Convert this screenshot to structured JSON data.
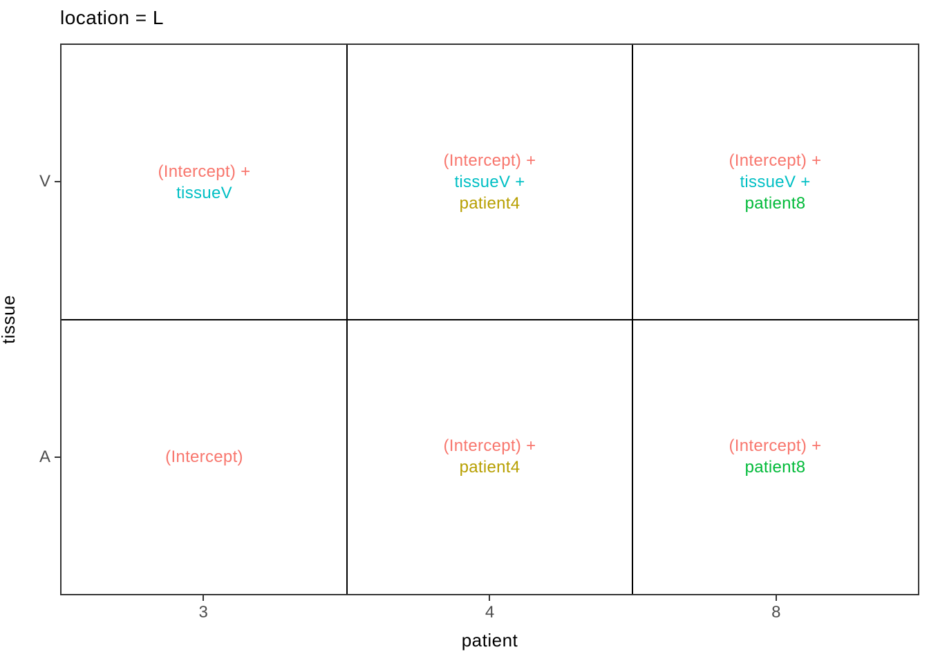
{
  "figure": {
    "background": "#FFFFFF"
  },
  "chart_data": {
    "type": "table",
    "title": "location = L",
    "xlabel": "patient",
    "ylabel": "tissue",
    "x_categories": [
      "3",
      "4",
      "8"
    ],
    "y_categories": [
      "V",
      "A"
    ],
    "legend": false,
    "grid": false,
    "panel_border_color": "#333333",
    "divider_color": "#000000",
    "tick_color": "#333333",
    "tick_label_color": "#4D4D4D",
    "title_color": "#000000",
    "axis_title_color": "#000000",
    "term_colors": {
      "(Intercept)": "#F8766D",
      "tissueV": "#00BFC4",
      "patient4": "#B79F00",
      "patient8": "#00BA38"
    },
    "cells": [
      {
        "row": "V",
        "col": "3",
        "lines": [
          {
            "text": "(Intercept) +",
            "color": "#F8766D"
          },
          {
            "text": "tissueV",
            "color": "#00BFC4"
          }
        ]
      },
      {
        "row": "V",
        "col": "4",
        "lines": [
          {
            "text": "(Intercept) +",
            "color": "#F8766D"
          },
          {
            "text": "tissueV +",
            "color": "#00BFC4"
          },
          {
            "text": "patient4",
            "color": "#B79F00"
          }
        ]
      },
      {
        "row": "V",
        "col": "8",
        "lines": [
          {
            "text": "(Intercept) +",
            "color": "#F8766D"
          },
          {
            "text": "tissueV +",
            "color": "#00BFC4"
          },
          {
            "text": "patient8",
            "color": "#00BA38"
          }
        ]
      },
      {
        "row": "A",
        "col": "3",
        "lines": [
          {
            "text": "(Intercept)",
            "color": "#F8766D"
          }
        ]
      },
      {
        "row": "A",
        "col": "4",
        "lines": [
          {
            "text": "(Intercept) +",
            "color": "#F8766D"
          },
          {
            "text": "patient4",
            "color": "#B79F00"
          }
        ]
      },
      {
        "row": "A",
        "col": "8",
        "lines": [
          {
            "text": "(Intercept) +",
            "color": "#F8766D"
          },
          {
            "text": "patient8",
            "color": "#00BA38"
          }
        ]
      }
    ]
  }
}
